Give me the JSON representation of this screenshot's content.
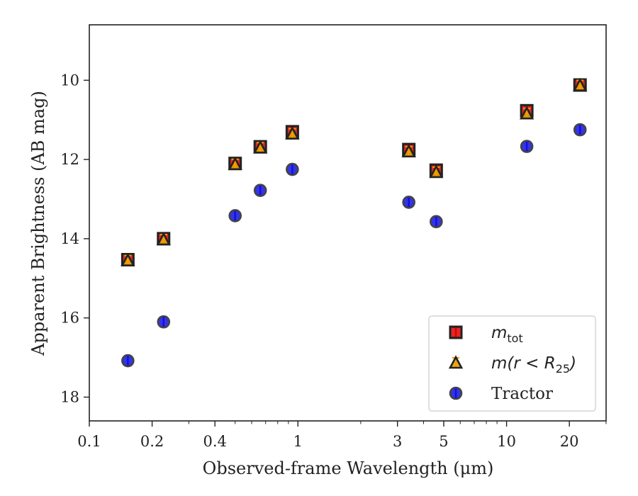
{
  "chart_data": {
    "type": "scatter",
    "xlabel": "Observed-frame Wavelength (μm)",
    "ylabel": "Apparent Brightness (AB mag)",
    "xscale": "log",
    "xlim": [
      0.1,
      30
    ],
    "ylim": [
      18.6,
      8.6
    ],
    "y_inverted": true,
    "x_ticks": [
      0.1,
      0.2,
      0.4,
      1,
      3,
      5,
      10,
      20
    ],
    "x_tick_labels": [
      "0.1",
      "0.2",
      "0.4",
      "1",
      "3",
      "5",
      "10",
      "20"
    ],
    "y_ticks": [
      10,
      12,
      14,
      16,
      18
    ],
    "y_tick_labels": [
      "10",
      "12",
      "14",
      "16",
      "18"
    ],
    "grid": false,
    "legend_position": "bottom-right",
    "series": [
      {
        "name": "m_tot",
        "name_main": "m",
        "name_sub": "tot",
        "marker": "square",
        "color": "#e00000",
        "edge_color": "#222222",
        "points": [
          {
            "x": 0.153,
            "y": 14.53
          },
          {
            "x": 0.227,
            "y": 14.0
          },
          {
            "x": 0.5,
            "y": 12.1
          },
          {
            "x": 0.66,
            "y": 11.68
          },
          {
            "x": 0.94,
            "y": 11.3
          },
          {
            "x": 3.4,
            "y": 11.75
          },
          {
            "x": 4.6,
            "y": 12.27
          },
          {
            "x": 12.5,
            "y": 10.77
          },
          {
            "x": 22.5,
            "y": 10.12
          }
        ]
      },
      {
        "name": "m(r<R_25)",
        "name_main": "m(r < R",
        "name_sub": "25",
        "name_tail": ")",
        "marker": "triangle",
        "color": "#f0a000",
        "edge_color": "#222222",
        "points": [
          {
            "x": 0.153,
            "y": 14.55
          },
          {
            "x": 0.227,
            "y": 14.02
          },
          {
            "x": 0.5,
            "y": 12.12
          },
          {
            "x": 0.66,
            "y": 11.7
          },
          {
            "x": 0.94,
            "y": 11.35
          },
          {
            "x": 3.4,
            "y": 11.8
          },
          {
            "x": 4.6,
            "y": 12.32
          },
          {
            "x": 12.5,
            "y": 10.84
          },
          {
            "x": 22.5,
            "y": 10.13
          }
        ]
      },
      {
        "name": "Tractor",
        "marker": "circle",
        "color": "#1010e0",
        "edge_color": "#444444",
        "points": [
          {
            "x": 0.153,
            "y": 17.08
          },
          {
            "x": 0.227,
            "y": 16.1
          },
          {
            "x": 0.5,
            "y": 13.42
          },
          {
            "x": 0.66,
            "y": 12.78
          },
          {
            "x": 0.94,
            "y": 12.25
          },
          {
            "x": 3.4,
            "y": 13.08
          },
          {
            "x": 4.6,
            "y": 13.57
          },
          {
            "x": 12.5,
            "y": 11.67
          },
          {
            "x": 22.5,
            "y": 11.25
          }
        ]
      }
    ]
  }
}
